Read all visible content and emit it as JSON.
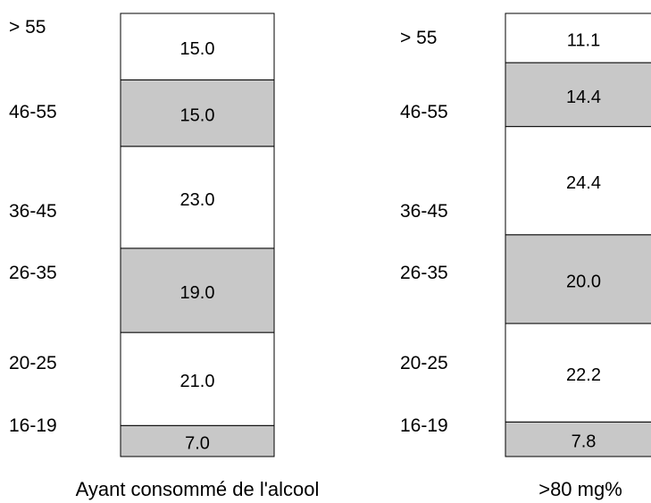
{
  "chart_data": [
    {
      "type": "bar",
      "stacked": true,
      "orientation": "vertical",
      "title": "",
      "caption": "Ayant consommé de l'alcool",
      "categories": [
        "16-19",
        "20-25",
        "26-35",
        "36-45",
        "46-55",
        "> 55"
      ],
      "values": [
        7.0,
        21.0,
        19.0,
        23.0,
        15.0,
        15.0
      ],
      "value_labels": [
        "7.0",
        "21.0",
        "19.0",
        "23.0",
        "15.0",
        "15.0"
      ],
      "category_labels_top_to_bottom": [
        "> 55",
        "46-55",
        "36-45",
        "26-35",
        "20-25",
        "16-19"
      ],
      "unit": "%",
      "total": 100,
      "fill_colors": [
        "#c8c8c8",
        "#ffffff",
        "#c8c8c8",
        "#ffffff",
        "#c8c8c8",
        "#ffffff"
      ]
    },
    {
      "type": "bar",
      "stacked": true,
      "orientation": "vertical",
      "title": "",
      "caption": ">80 mg%",
      "categories": [
        "16-19",
        "20-25",
        "26-35",
        "36-45",
        "46-55",
        "> 55"
      ],
      "values": [
        7.8,
        22.2,
        20.0,
        24.4,
        14.4,
        11.1
      ],
      "value_labels": [
        "7.8",
        "22.2",
        "20.0",
        "24.4",
        "14.4",
        "11.1"
      ],
      "category_labels_top_to_bottom": [
        "> 55",
        "46-55",
        "36-45",
        "26-35",
        "20-25",
        "16-19"
      ],
      "unit": "%",
      "total": 100,
      "fill_colors": [
        "#c8c8c8",
        "#ffffff",
        "#c8c8c8",
        "#ffffff",
        "#c8c8c8",
        "#ffffff"
      ]
    }
  ],
  "colors": {
    "shaded": "#c8c8c8",
    "plain": "#ffffff",
    "stroke": "#000000"
  }
}
